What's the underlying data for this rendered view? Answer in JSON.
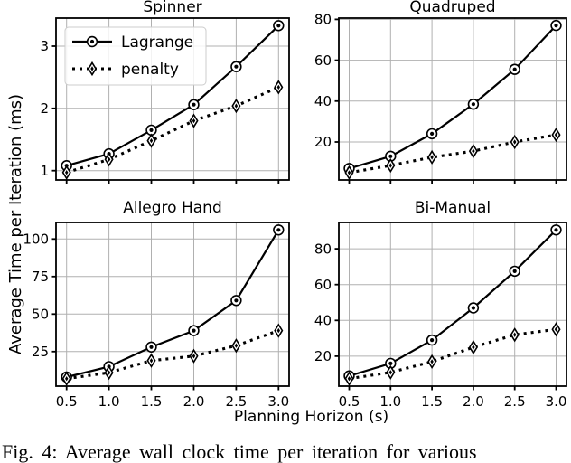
{
  "figure": {
    "ylabel": "Average Time per Iteration (ms)",
    "xlabel": "Planning Horizon (s)",
    "caption": "Fig. 4: Average wall clock time per iteration for various",
    "colors": {
      "line": "#000000",
      "grid": "#b0b0b0",
      "background": "#ffffff",
      "legend_border": "#cccccc"
    }
  },
  "legend": {
    "entries": [
      {
        "label": "Lagrange",
        "marker": "circle-dot-marker",
        "line": "solid"
      },
      {
        "label": "penalty",
        "marker": "diamond-dot-marker",
        "line": "dotted"
      }
    ],
    "position": "upper-left-of-first-subplot"
  },
  "chart_data": [
    {
      "type": "line",
      "title": "Spinner",
      "x": [
        0.5,
        1.0,
        1.5,
        2.0,
        2.5,
        3.0
      ],
      "series": [
        {
          "name": "Lagrange",
          "line": "solid",
          "marker": "circle-dot",
          "values": [
            1.08,
            1.27,
            1.65,
            2.06,
            2.67,
            3.33
          ]
        },
        {
          "name": "penalty",
          "line": "dotted",
          "marker": "diamond-dot",
          "values": [
            0.97,
            1.18,
            1.48,
            1.8,
            2.04,
            2.34
          ]
        }
      ],
      "xlim": [
        0.375,
        3.125
      ],
      "ylim": [
        0.85,
        3.45
      ],
      "xticks": [
        0.5,
        1.0,
        1.5,
        2.0,
        2.5,
        3.0
      ],
      "yticks": [
        1,
        2,
        3
      ],
      "grid": true,
      "show_x_tick_labels": false,
      "show_legend": true
    },
    {
      "type": "line",
      "title": "Quadruped",
      "x": [
        0.5,
        1.0,
        1.5,
        2.0,
        2.5,
        3.0
      ],
      "series": [
        {
          "name": "Lagrange",
          "line": "solid",
          "marker": "circle-dot",
          "values": [
            7,
            13,
            24,
            38.5,
            55.5,
            77
          ]
        },
        {
          "name": "penalty",
          "line": "dotted",
          "marker": "diamond-dot",
          "values": [
            5,
            8.5,
            12.5,
            15.5,
            20,
            23.5
          ]
        }
      ],
      "xlim": [
        0.375,
        3.125
      ],
      "ylim": [
        1.4,
        80.6
      ],
      "xticks": [
        0.5,
        1.0,
        1.5,
        2.0,
        2.5,
        3.0
      ],
      "yticks": [
        20,
        40,
        60,
        80
      ],
      "grid": true,
      "show_x_tick_labels": false,
      "show_legend": false
    },
    {
      "type": "line",
      "title": "Allegro Hand",
      "x": [
        0.5,
        1.0,
        1.5,
        2.0,
        2.5,
        3.0
      ],
      "series": [
        {
          "name": "Lagrange",
          "line": "solid",
          "marker": "circle-dot",
          "values": [
            8,
            15,
            28,
            39,
            59,
            106
          ]
        },
        {
          "name": "penalty",
          "line": "dotted",
          "marker": "diamond-dot",
          "values": [
            7,
            11,
            19,
            22,
            29,
            39
          ]
        }
      ],
      "xlim": [
        0.375,
        3.125
      ],
      "ylim": [
        2,
        111
      ],
      "xticks": [
        0.5,
        1.0,
        1.5,
        2.0,
        2.5,
        3.0
      ],
      "yticks": [
        25,
        50,
        75,
        100
      ],
      "grid": true,
      "show_x_tick_labels": true,
      "show_legend": false
    },
    {
      "type": "line",
      "title": "Bi-Manual",
      "x": [
        0.5,
        1.0,
        1.5,
        2.0,
        2.5,
        3.0
      ],
      "series": [
        {
          "name": "Lagrange",
          "line": "solid",
          "marker": "circle-dot",
          "values": [
            9,
            16,
            29,
            47,
            67.5,
            90.5
          ]
        },
        {
          "name": "penalty",
          "line": "dotted",
          "marker": "diamond-dot",
          "values": [
            7.5,
            11,
            17,
            25,
            32,
            35
          ]
        }
      ],
      "xlim": [
        0.375,
        3.125
      ],
      "ylim": [
        3.3,
        94.7
      ],
      "xticks": [
        0.5,
        1.0,
        1.5,
        2.0,
        2.5,
        3.0
      ],
      "yticks": [
        20,
        40,
        60,
        80
      ],
      "grid": true,
      "show_x_tick_labels": true,
      "show_legend": false
    }
  ]
}
